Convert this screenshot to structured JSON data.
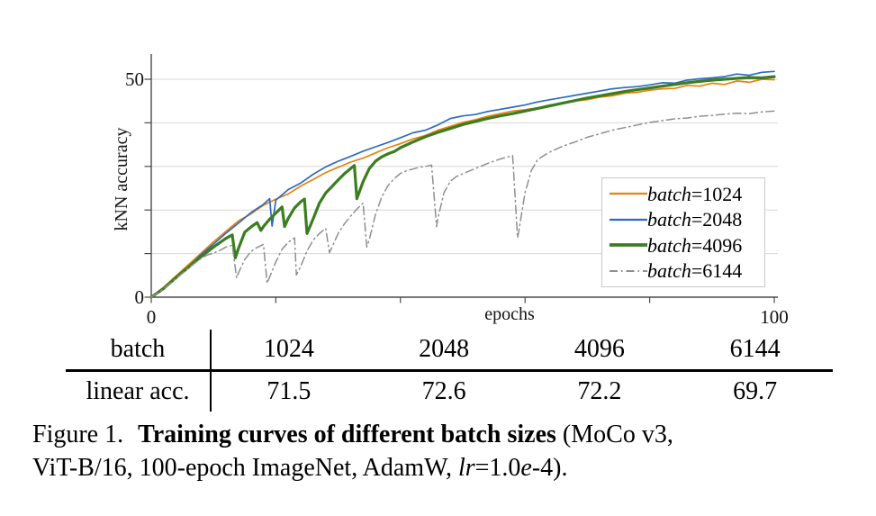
{
  "chart_data": {
    "type": "line",
    "title": "",
    "x_axis": {
      "label": "epochs",
      "range": [
        0,
        100
      ],
      "ticks": [
        0,
        20,
        40,
        60,
        80,
        100
      ],
      "shown_labels": [
        "0",
        "100"
      ]
    },
    "y_axis": {
      "label": "kNN accuracy",
      "range": [
        0,
        55
      ],
      "ticks": [
        0,
        10,
        20,
        30,
        40,
        50
      ],
      "shown_labels": [
        "0",
        "50"
      ]
    },
    "grid": "horizontal-light",
    "legend_position": "right-middle",
    "series": [
      {
        "name": "batch=1024",
        "color": "#e8820e",
        "style": "solid",
        "width": 1.7,
        "points": [
          [
            0,
            0
          ],
          [
            2,
            2.3
          ],
          [
            4,
            4.9
          ],
          [
            6,
            7.5
          ],
          [
            8,
            10.1
          ],
          [
            10,
            12.7
          ],
          [
            12,
            15.1
          ],
          [
            14,
            17.5
          ],
          [
            16,
            19.1
          ],
          [
            18,
            21.1
          ],
          [
            20,
            22.5
          ],
          [
            22,
            23.7
          ],
          [
            24,
            25.5
          ],
          [
            26,
            27.0
          ],
          [
            28,
            28.6
          ],
          [
            30,
            29.8
          ],
          [
            32,
            31.0
          ],
          [
            34,
            31.9
          ],
          [
            36,
            33.1
          ],
          [
            38,
            34.3
          ],
          [
            40,
            35.2
          ],
          [
            42,
            36.3
          ],
          [
            44,
            37.1
          ],
          [
            46,
            38.3
          ],
          [
            48,
            39.2
          ],
          [
            50,
            40.1
          ],
          [
            52,
            40.7
          ],
          [
            54,
            41.5
          ],
          [
            56,
            42.1
          ],
          [
            58,
            42.7
          ],
          [
            60,
            43.0
          ],
          [
            62,
            43.4
          ],
          [
            64,
            44.1
          ],
          [
            66,
            44.4
          ],
          [
            68,
            45.0
          ],
          [
            70,
            45.3
          ],
          [
            72,
            45.9
          ],
          [
            74,
            46.2
          ],
          [
            76,
            46.8
          ],
          [
            78,
            47.0
          ],
          [
            80,
            47.5
          ],
          [
            82,
            47.8
          ],
          [
            84,
            47.9
          ],
          [
            86,
            48.6
          ],
          [
            88,
            48.4
          ],
          [
            90,
            49.1
          ],
          [
            92,
            48.8
          ],
          [
            94,
            49.6
          ],
          [
            96,
            49.3
          ],
          [
            98,
            50.0
          ],
          [
            100,
            49.9
          ]
        ]
      },
      {
        "name": "batch=2048",
        "color": "#2d6ac1",
        "style": "solid",
        "width": 1.7,
        "points": [
          [
            0,
            0
          ],
          [
            2,
            2.1
          ],
          [
            4,
            4.7
          ],
          [
            6,
            7.0
          ],
          [
            8,
            9.8
          ],
          [
            10,
            12.2
          ],
          [
            12,
            14.7
          ],
          [
            14,
            17.0
          ],
          [
            16,
            19.4
          ],
          [
            18,
            21.3
          ],
          [
            19,
            22.6
          ],
          [
            19.4,
            16.3
          ],
          [
            20,
            22.3
          ],
          [
            22,
            24.7
          ],
          [
            24,
            26.2
          ],
          [
            26,
            28.2
          ],
          [
            28,
            29.9
          ],
          [
            30,
            31.2
          ],
          [
            32,
            32.3
          ],
          [
            34,
            33.5
          ],
          [
            36,
            34.5
          ],
          [
            38,
            35.5
          ],
          [
            40,
            36.6
          ],
          [
            42,
            37.7
          ],
          [
            44,
            38.3
          ],
          [
            46,
            39.5
          ],
          [
            48,
            41.0
          ],
          [
            50,
            41.6
          ],
          [
            52,
            41.9
          ],
          [
            54,
            42.6
          ],
          [
            56,
            43.1
          ],
          [
            58,
            43.6
          ],
          [
            60,
            44.1
          ],
          [
            62,
            44.8
          ],
          [
            64,
            45.3
          ],
          [
            66,
            45.8
          ],
          [
            68,
            46.3
          ],
          [
            70,
            46.8
          ],
          [
            72,
            47.3
          ],
          [
            74,
            47.8
          ],
          [
            76,
            48.1
          ],
          [
            78,
            48.3
          ],
          [
            80,
            48.7
          ],
          [
            82,
            49.2
          ],
          [
            84,
            49.1
          ],
          [
            86,
            49.8
          ],
          [
            88,
            50.1
          ],
          [
            90,
            50.3
          ],
          [
            92,
            50.6
          ],
          [
            94,
            51.2
          ],
          [
            96,
            50.9
          ],
          [
            98,
            51.6
          ],
          [
            100,
            51.8
          ]
        ]
      },
      {
        "name": "batch=4096",
        "color": "#3b7d20",
        "style": "solid",
        "width": 3.2,
        "points": [
          [
            0,
            0
          ],
          [
            2,
            2.0
          ],
          [
            4,
            4.5
          ],
          [
            6,
            6.9
          ],
          [
            8,
            9.3
          ],
          [
            10,
            11.5
          ],
          [
            12,
            13.5
          ],
          [
            13,
            14.3
          ],
          [
            13.5,
            9.0
          ],
          [
            14,
            11.2
          ],
          [
            15,
            14.9
          ],
          [
            16,
            16.1
          ],
          [
            17,
            17.1
          ],
          [
            17.6,
            15.3
          ],
          [
            18,
            16.2
          ],
          [
            19,
            17.9
          ],
          [
            20,
            19.3
          ],
          [
            21,
            20.7
          ],
          [
            21.4,
            16.2
          ],
          [
            22,
            18.1
          ],
          [
            23,
            20.5
          ],
          [
            24,
            21.9
          ],
          [
            24.6,
            22.5
          ],
          [
            25,
            14.6
          ],
          [
            26,
            18.0
          ],
          [
            27,
            21.6
          ],
          [
            28,
            23.9
          ],
          [
            29,
            25.4
          ],
          [
            30,
            26.9
          ],
          [
            31,
            28.3
          ],
          [
            32,
            29.5
          ],
          [
            32.6,
            30.2
          ],
          [
            33,
            22.6
          ],
          [
            34,
            26.5
          ],
          [
            35,
            29.5
          ],
          [
            36,
            31.2
          ],
          [
            37,
            32.2
          ],
          [
            38,
            32.9
          ],
          [
            39,
            33.4
          ],
          [
            40,
            34.3
          ],
          [
            42,
            35.6
          ],
          [
            44,
            36.8
          ],
          [
            46,
            37.8
          ],
          [
            48,
            38.7
          ],
          [
            50,
            39.6
          ],
          [
            52,
            40.3
          ],
          [
            54,
            41.0
          ],
          [
            56,
            41.6
          ],
          [
            58,
            42.1
          ],
          [
            60,
            42.7
          ],
          [
            62,
            43.3
          ],
          [
            64,
            43.9
          ],
          [
            66,
            44.5
          ],
          [
            68,
            45.1
          ],
          [
            70,
            45.7
          ],
          [
            72,
            46.2
          ],
          [
            74,
            46.7
          ],
          [
            76,
            47.2
          ],
          [
            78,
            47.6
          ],
          [
            80,
            48.0
          ],
          [
            82,
            48.4
          ],
          [
            84,
            48.8
          ],
          [
            86,
            49.2
          ],
          [
            88,
            49.5
          ],
          [
            90,
            49.8
          ],
          [
            92,
            50.0
          ],
          [
            94,
            50.2
          ],
          [
            96,
            50.4
          ],
          [
            98,
            50.3
          ],
          [
            100,
            50.6
          ]
        ]
      },
      {
        "name": "batch=6144",
        "color": "#8f8f8f",
        "style": "dashdot",
        "width": 1.5,
        "points": [
          [
            0,
            0
          ],
          [
            2,
            1.9
          ],
          [
            4,
            4.3
          ],
          [
            6,
            6.7
          ],
          [
            8,
            8.9
          ],
          [
            9,
            9.7
          ],
          [
            10,
            10.1
          ],
          [
            11,
            10.7
          ],
          [
            12,
            11.5
          ],
          [
            13,
            11.9
          ],
          [
            13.7,
            4.4
          ],
          [
            14,
            5.6
          ],
          [
            15,
            8.6
          ],
          [
            16,
            10.5
          ],
          [
            17,
            11.4
          ],
          [
            18,
            12.1
          ],
          [
            18.6,
            3.2
          ],
          [
            19,
            4.6
          ],
          [
            20,
            8.1
          ],
          [
            21,
            11.0
          ],
          [
            22,
            12.6
          ],
          [
            23,
            13.6
          ],
          [
            23.3,
            5.1
          ],
          [
            24,
            7.1
          ],
          [
            25,
            10.6
          ],
          [
            26,
            13.1
          ],
          [
            27,
            14.6
          ],
          [
            28,
            15.8
          ],
          [
            28.6,
            10.2
          ],
          [
            29,
            11.4
          ],
          [
            30,
            14.6
          ],
          [
            31,
            16.8
          ],
          [
            32,
            18.6
          ],
          [
            33,
            20.2
          ],
          [
            34,
            21.6
          ],
          [
            34.6,
            11.5
          ],
          [
            35,
            13.2
          ],
          [
            36,
            19.0
          ],
          [
            37,
            23.0
          ],
          [
            38,
            25.6
          ],
          [
            39,
            27.2
          ],
          [
            40,
            28.4
          ],
          [
            41,
            29.0
          ],
          [
            42,
            29.4
          ],
          [
            43,
            29.8
          ],
          [
            44,
            30.0
          ],
          [
            45,
            30.3
          ],
          [
            45.8,
            16.2
          ],
          [
            46,
            18.0
          ],
          [
            47,
            24.0
          ],
          [
            48,
            26.6
          ],
          [
            49,
            27.7
          ],
          [
            50,
            28.3
          ],
          [
            52,
            29.5
          ],
          [
            54,
            30.7
          ],
          [
            56,
            31.7
          ],
          [
            58,
            32.5
          ],
          [
            58.8,
            13.6
          ],
          [
            59,
            15.2
          ],
          [
            60,
            24.0
          ],
          [
            61,
            29.0
          ],
          [
            62,
            31.5
          ],
          [
            63,
            32.5
          ],
          [
            64,
            33.3
          ],
          [
            66,
            34.6
          ],
          [
            68,
            35.6
          ],
          [
            70,
            36.7
          ],
          [
            72,
            37.5
          ],
          [
            74,
            38.3
          ],
          [
            76,
            38.9
          ],
          [
            78,
            39.5
          ],
          [
            80,
            40.1
          ],
          [
            82,
            40.5
          ],
          [
            84,
            40.9
          ],
          [
            86,
            41.1
          ],
          [
            88,
            41.5
          ],
          [
            90,
            41.7
          ],
          [
            92,
            42.0
          ],
          [
            94,
            42.2
          ],
          [
            96,
            42.1
          ],
          [
            98,
            42.5
          ],
          [
            100,
            42.7
          ]
        ]
      }
    ]
  },
  "legend": {
    "items": [
      {
        "italic": "batch",
        "value": "=1024"
      },
      {
        "italic": "batch",
        "value": "=2048"
      },
      {
        "italic": "batch",
        "value": "=4096"
      },
      {
        "italic": "batch",
        "value": "=6144"
      }
    ]
  },
  "table": {
    "header_row": [
      "batch",
      "1024",
      "2048",
      "4096",
      "6144"
    ],
    "value_row": [
      "linear acc.",
      "71.5",
      "72.6",
      "72.2",
      "69.7"
    ]
  },
  "caption": {
    "label": "Figure 1.",
    "bold": "Training curves of different batch sizes",
    "line1_suffix": "(MoCo v3,",
    "line2_pre": "ViT-B/16, 100-epoch ImageNet, AdamW, ",
    "italic1": "lr",
    "mid": "=1.0",
    "italic2": "e",
    "end": "-4)."
  }
}
